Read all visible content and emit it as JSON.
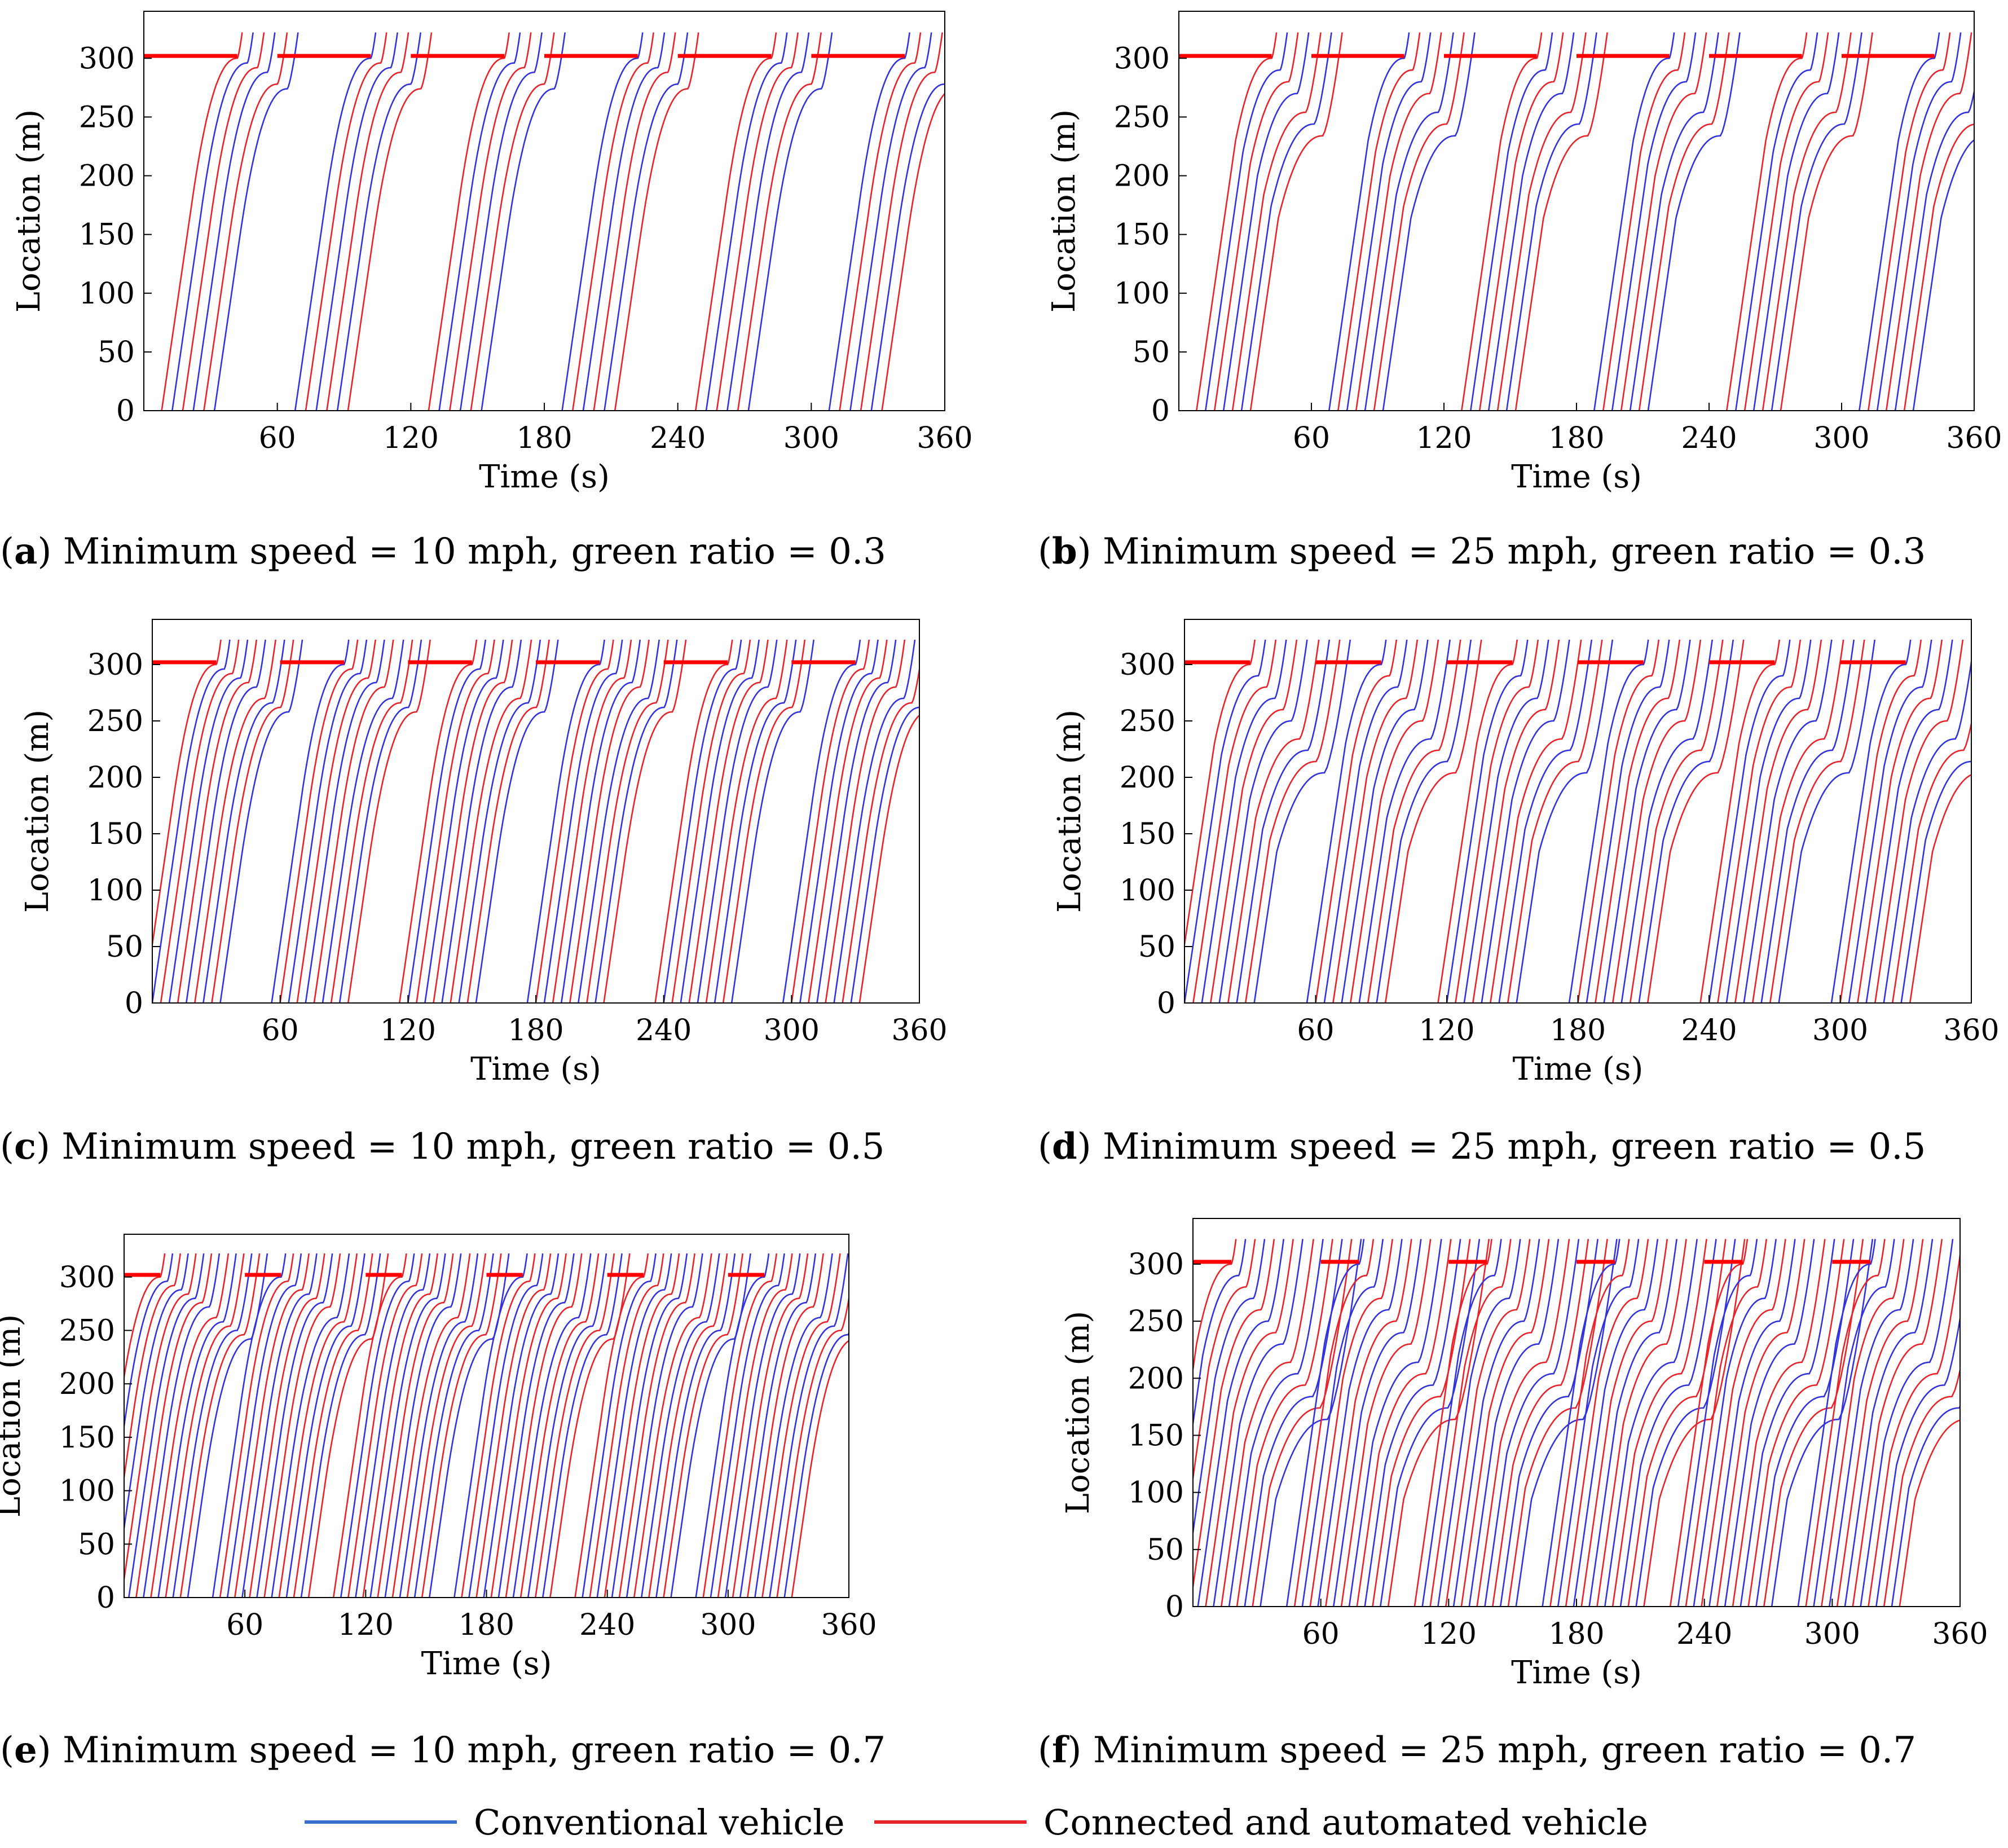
{
  "colors": {
    "conventional": "#3333dd",
    "cav": "#e8242a",
    "signal": "#ff0000"
  },
  "legend": {
    "conventional_label": "Conventional vehicle",
    "cav_label": "Connected and automated vehicle"
  },
  "chart_data": [
    {
      "id": "a",
      "type": "line",
      "xlabel": "Time (s)",
      "ylabel": "Location (m)",
      "xlim": [
        0,
        360
      ],
      "ylim": [
        0,
        340
      ],
      "xticks": [
        "60",
        "120",
        "180",
        "240",
        "300",
        "360"
      ],
      "yticks": [
        "0",
        "50",
        "100",
        "150",
        "200",
        "250",
        "300"
      ],
      "caption_letter": "a",
      "caption_text": "Minimum speed = 10 mph, green ratio = 0.3",
      "signal_location": 302,
      "cycle_length": 60,
      "green_ratio": 0.3,
      "min_speed_mph": 10,
      "vehicles_per_cycle": 6
    },
    {
      "id": "b",
      "type": "line",
      "xlabel": "Time (s)",
      "ylabel": "Location (m)",
      "xlim": [
        0,
        360
      ],
      "ylim": [
        0,
        340
      ],
      "xticks": [
        "60",
        "120",
        "180",
        "240",
        "300",
        "360"
      ],
      "yticks": [
        "0",
        "50",
        "100",
        "150",
        "200",
        "250",
        "300"
      ],
      "caption_letter": "b",
      "caption_text": "Minimum speed = 25 mph, green ratio = 0.3",
      "signal_location": 302,
      "cycle_length": 60,
      "green_ratio": 0.3,
      "min_speed_mph": 25,
      "vehicles_per_cycle": 7
    },
    {
      "id": "c",
      "type": "line",
      "xlabel": "Time (s)",
      "ylabel": "Location (m)",
      "xlim": [
        0,
        360
      ],
      "ylim": [
        0,
        340
      ],
      "xticks": [
        "60",
        "120",
        "180",
        "240",
        "300",
        "360"
      ],
      "yticks": [
        "0",
        "50",
        "100",
        "150",
        "200",
        "250",
        "300"
      ],
      "caption_letter": "c",
      "caption_text": "Minimum speed = 10 mph, green ratio = 0.5",
      "signal_location": 302,
      "cycle_length": 60,
      "green_ratio": 0.5,
      "min_speed_mph": 10,
      "vehicles_per_cycle": 10
    },
    {
      "id": "d",
      "type": "line",
      "xlabel": "Time (s)",
      "ylabel": "Location (m)",
      "xlim": [
        0,
        360
      ],
      "ylim": [
        0,
        340
      ],
      "xticks": [
        "60",
        "120",
        "180",
        "240",
        "300",
        "360"
      ],
      "yticks": [
        "0",
        "50",
        "100",
        "150",
        "200",
        "250",
        "300"
      ],
      "caption_letter": "d",
      "caption_text": "Minimum speed = 25 mph, green ratio = 0.5",
      "signal_location": 302,
      "cycle_length": 60,
      "green_ratio": 0.5,
      "min_speed_mph": 25,
      "vehicles_per_cycle": 10
    },
    {
      "id": "e",
      "type": "line",
      "xlabel": "Time (s)",
      "ylabel": "Location (m)",
      "xlim": [
        0,
        360
      ],
      "ylim": [
        0,
        340
      ],
      "xticks": [
        "60",
        "120",
        "180",
        "240",
        "300",
        "360"
      ],
      "yticks": [
        "0",
        "50",
        "100",
        "150",
        "200",
        "250",
        "300"
      ],
      "caption_letter": "e",
      "caption_text": "Minimum speed = 10 mph, green ratio = 0.7",
      "signal_location": 302,
      "cycle_length": 60,
      "green_ratio": 0.7,
      "min_speed_mph": 10,
      "vehicles_per_cycle": 14
    },
    {
      "id": "f",
      "type": "line",
      "xlabel": "Time (s)",
      "ylabel": "Location (m)",
      "xlim": [
        0,
        360
      ],
      "ylim": [
        0,
        340
      ],
      "xticks": [
        "60",
        "120",
        "180",
        "240",
        "300",
        "360"
      ],
      "yticks": [
        "0",
        "50",
        "100",
        "150",
        "200",
        "250",
        "300"
      ],
      "caption_letter": "f",
      "caption_text": "Minimum speed = 25 mph, green ratio = 0.7",
      "signal_location": 302,
      "cycle_length": 60,
      "green_ratio": 0.7,
      "min_speed_mph": 25,
      "vehicles_per_cycle": 14
    }
  ]
}
